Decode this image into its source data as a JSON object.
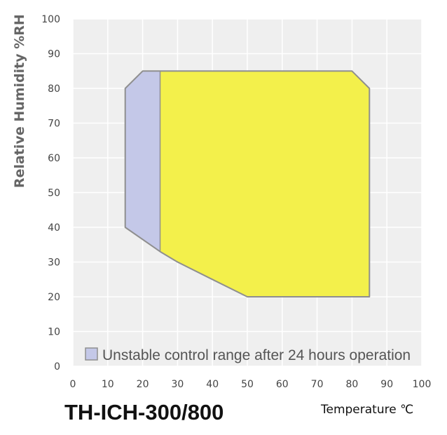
{
  "chart_data": {
    "type": "area",
    "title": "TH-ICH-300/800",
    "xlabel": "Temperature ℃",
    "ylabel": "Relative Humidity %RH",
    "xlim": [
      0,
      100
    ],
    "ylim": [
      0,
      100
    ],
    "xticks": [
      "0",
      "10",
      "20",
      "30",
      "40",
      "50",
      "60",
      "70",
      "80",
      "90",
      "100"
    ],
    "yticks": [
      "0",
      "10",
      "20",
      "30",
      "40",
      "50",
      "60",
      "70",
      "80",
      "90",
      "100"
    ],
    "grid": true,
    "legend_position": "bottom-inside",
    "series": [
      {
        "name": "Unstable control range after 24 hours operation",
        "color": "#c4c8e8",
        "points": [
          [
            15,
            80
          ],
          [
            20,
            85
          ],
          [
            25,
            85
          ],
          [
            25,
            33
          ],
          [
            15,
            40
          ]
        ]
      },
      {
        "color": "#f3f04b",
        "points": [
          [
            25,
            85
          ],
          [
            80,
            85
          ],
          [
            85,
            80
          ],
          [
            85,
            20
          ],
          [
            50,
            20
          ],
          [
            40,
            25
          ],
          [
            30,
            30
          ],
          [
            25,
            33
          ]
        ]
      }
    ],
    "outline_points": [
      [
        15,
        80
      ],
      [
        20,
        85
      ],
      [
        80,
        85
      ],
      [
        85,
        80
      ],
      [
        85,
        20
      ],
      [
        50,
        20
      ],
      [
        40,
        25
      ],
      [
        30,
        30
      ],
      [
        25,
        33
      ],
      [
        15,
        40
      ]
    ],
    "plot_background": "#efefef",
    "grid_color": "#ffffff",
    "outline_color": "#8f8f8f"
  }
}
